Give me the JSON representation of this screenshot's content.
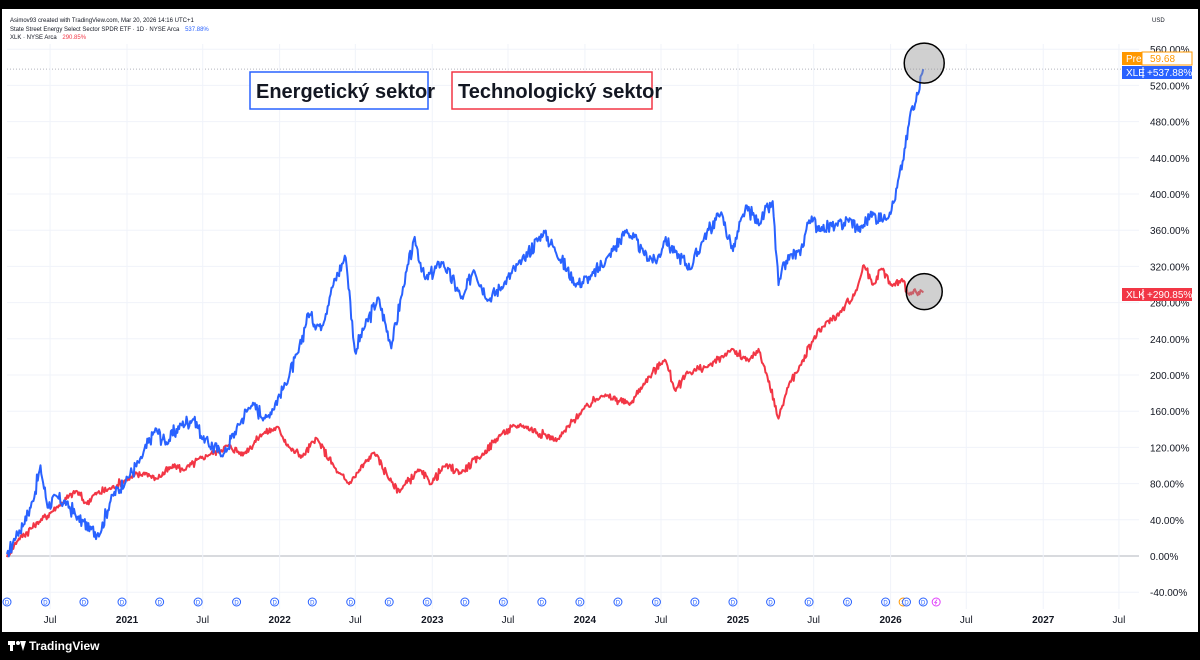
{
  "header": {
    "credit": "Asimov93 created with TradingView.com, Mar 20, 2026 14:16 UTC+1",
    "line1_name": "State Street Energy Select Sector SPDR ETF · 1D · NYSE Arca",
    "line1_value": "537.88%",
    "line2_name": "XLK · NYSE Arca",
    "line2_value": "290.85%",
    "currency": "USD"
  },
  "footer": {
    "brand": "TradingView"
  },
  "badges": {
    "pre_label": "Pre",
    "pre_value": "59.68",
    "xle_label": "XLE",
    "xle_value": "+537.88%",
    "xlk_label": "XLK",
    "xlk_value": "+290.85%"
  },
  "colors": {
    "energy": "#2962ff",
    "tech": "#f23645",
    "pre": "#ff9800"
  },
  "chart_data": {
    "type": "line",
    "ylabel_unit": "%",
    "ylim": [
      -50,
      560
    ],
    "y_ticks": [
      "-40.00%",
      "0.00%",
      "40.00%",
      "80.00%",
      "120.00%",
      "160.00%",
      "200.00%",
      "240.00%",
      "280.00%",
      "320.00%",
      "360.00%",
      "400.00%",
      "440.00%",
      "480.00%",
      "520.00%",
      "560.00%"
    ],
    "y_tick_values": [
      -40,
      0,
      40,
      80,
      120,
      160,
      200,
      240,
      280,
      320,
      360,
      400,
      440,
      480,
      520,
      560
    ],
    "x_ticks": [
      {
        "label": "Jul",
        "date": "2020-07-01",
        "major": false
      },
      {
        "label": "2021",
        "date": "2021-01-01",
        "major": true
      },
      {
        "label": "Jul",
        "date": "2021-07-01",
        "major": false
      },
      {
        "label": "2022",
        "date": "2022-01-01",
        "major": true
      },
      {
        "label": "Jul",
        "date": "2022-07-01",
        "major": false
      },
      {
        "label": "2023",
        "date": "2023-01-01",
        "major": true
      },
      {
        "label": "Jul",
        "date": "2023-07-01",
        "major": false
      },
      {
        "label": "2024",
        "date": "2024-01-01",
        "major": true
      },
      {
        "label": "Jul",
        "date": "2024-07-01",
        "major": false
      },
      {
        "label": "2025",
        "date": "2025-01-01",
        "major": true
      },
      {
        "label": "Jul",
        "date": "2025-07-01",
        "major": false
      },
      {
        "label": "2026",
        "date": "2026-01-01",
        "major": true
      },
      {
        "label": "Jul",
        "date": "2026-07-01",
        "major": false
      },
      {
        "label": "2027",
        "date": "2027-01-01",
        "major": true
      },
      {
        "label": "Jul",
        "date": "2027-07-01",
        "major": false
      }
    ],
    "xlim": [
      "2020-03-20",
      "2027-08-18"
    ],
    "series": [
      {
        "name": "Energetický sektor",
        "ticker": "XLE",
        "points": [
          [
            "2020-03-20",
            0
          ],
          [
            "2020-04-10",
            22
          ],
          [
            "2020-05-01",
            38
          ],
          [
            "2020-05-20",
            60
          ],
          [
            "2020-06-08",
            98
          ],
          [
            "2020-06-25",
            55
          ],
          [
            "2020-07-15",
            65
          ],
          [
            "2020-08-10",
            58
          ],
          [
            "2020-09-05",
            42
          ],
          [
            "2020-10-05",
            30
          ],
          [
            "2020-10-28",
            25
          ],
          [
            "2020-11-25",
            65
          ],
          [
            "2020-12-31",
            85
          ],
          [
            "2021-02-01",
            105
          ],
          [
            "2021-03-10",
            140
          ],
          [
            "2021-04-05",
            125
          ],
          [
            "2021-05-10",
            145
          ],
          [
            "2021-06-10",
            152
          ],
          [
            "2021-07-01",
            130
          ],
          [
            "2021-08-20",
            112
          ],
          [
            "2021-09-25",
            145
          ],
          [
            "2021-10-25",
            168
          ],
          [
            "2021-12-01",
            152
          ],
          [
            "2022-01-15",
            190
          ],
          [
            "2022-02-15",
            225
          ],
          [
            "2022-03-10",
            268
          ],
          [
            "2022-04-10",
            252
          ],
          [
            "2022-05-05",
            295
          ],
          [
            "2022-06-08",
            332
          ],
          [
            "2022-06-30",
            225
          ],
          [
            "2022-07-20",
            250
          ],
          [
            "2022-08-25",
            285
          ],
          [
            "2022-09-25",
            232
          ],
          [
            "2022-10-25",
            300
          ],
          [
            "2022-11-20",
            350
          ],
          [
            "2022-12-15",
            305
          ],
          [
            "2023-01-25",
            325
          ],
          [
            "2023-03-15",
            283
          ],
          [
            "2023-04-10",
            318
          ],
          [
            "2023-05-15",
            283
          ],
          [
            "2023-06-20",
            300
          ],
          [
            "2023-08-01",
            325
          ],
          [
            "2023-09-25",
            358
          ],
          [
            "2023-10-20",
            340
          ],
          [
            "2023-12-10",
            300
          ],
          [
            "2024-01-15",
            308
          ],
          [
            "2024-02-25",
            330
          ],
          [
            "2024-04-10",
            360
          ],
          [
            "2024-05-20",
            335
          ],
          [
            "2024-06-20",
            325
          ],
          [
            "2024-07-10",
            350
          ],
          [
            "2024-08-05",
            335
          ],
          [
            "2024-09-10",
            318
          ],
          [
            "2024-10-10",
            350
          ],
          [
            "2024-11-20",
            380
          ],
          [
            "2024-12-20",
            338
          ],
          [
            "2025-01-20",
            385
          ],
          [
            "2025-02-20",
            368
          ],
          [
            "2025-03-25",
            390
          ],
          [
            "2025-04-08",
            300
          ],
          [
            "2025-05-01",
            330
          ],
          [
            "2025-05-30",
            335
          ],
          [
            "2025-06-20",
            372
          ],
          [
            "2025-07-20",
            362
          ],
          [
            "2025-08-25",
            365
          ],
          [
            "2025-09-25",
            372
          ],
          [
            "2025-10-20",
            360
          ],
          [
            "2025-11-15",
            378
          ],
          [
            "2025-12-15",
            372
          ],
          [
            "2026-01-10",
            392
          ],
          [
            "2026-02-01",
            440
          ],
          [
            "2026-02-20",
            495
          ],
          [
            "2026-03-05",
            510
          ],
          [
            "2026-03-20",
            538
          ]
        ]
      },
      {
        "name": "Technologický sektor",
        "ticker": "XLK",
        "points": [
          [
            "2020-03-20",
            0
          ],
          [
            "2020-04-15",
            18
          ],
          [
            "2020-06-05",
            38
          ],
          [
            "2020-07-20",
            55
          ],
          [
            "2020-09-02",
            72
          ],
          [
            "2020-09-25",
            58
          ],
          [
            "2020-10-15",
            68
          ],
          [
            "2020-11-25",
            75
          ],
          [
            "2020-12-31",
            85
          ],
          [
            "2021-02-15",
            92
          ],
          [
            "2021-03-10",
            85
          ],
          [
            "2021-04-25",
            100
          ],
          [
            "2021-05-15",
            95
          ],
          [
            "2021-07-15",
            112
          ],
          [
            "2021-09-01",
            122
          ],
          [
            "2021-10-05",
            112
          ],
          [
            "2021-11-20",
            135
          ],
          [
            "2021-12-28",
            142
          ],
          [
            "2022-01-27",
            118
          ],
          [
            "2022-02-25",
            110
          ],
          [
            "2022-03-30",
            130
          ],
          [
            "2022-05-20",
            92
          ],
          [
            "2022-06-16",
            80
          ],
          [
            "2022-08-15",
            115
          ],
          [
            "2022-09-30",
            78
          ],
          [
            "2022-10-15",
            72
          ],
          [
            "2022-11-30",
            95
          ],
          [
            "2022-12-28",
            80
          ],
          [
            "2023-02-01",
            100
          ],
          [
            "2023-03-10",
            92
          ],
          [
            "2023-05-01",
            112
          ],
          [
            "2023-06-15",
            135
          ],
          [
            "2023-07-31",
            145
          ],
          [
            "2023-10-27",
            128
          ],
          [
            "2023-12-28",
            162
          ],
          [
            "2024-02-10",
            178
          ],
          [
            "2024-04-19",
            168
          ],
          [
            "2024-05-20",
            190
          ],
          [
            "2024-07-10",
            218
          ],
          [
            "2024-08-05",
            182
          ],
          [
            "2024-08-30",
            202
          ],
          [
            "2024-10-25",
            210
          ],
          [
            "2024-12-15",
            228
          ],
          [
            "2025-01-27",
            215
          ],
          [
            "2025-02-19",
            228
          ],
          [
            "2025-03-10",
            202
          ],
          [
            "2025-04-08",
            152
          ],
          [
            "2025-05-01",
            188
          ],
          [
            "2025-05-30",
            210
          ],
          [
            "2025-07-01",
            240
          ],
          [
            "2025-08-01",
            258
          ],
          [
            "2025-09-01",
            268
          ],
          [
            "2025-10-10",
            292
          ],
          [
            "2025-10-29",
            322
          ],
          [
            "2025-11-20",
            300
          ],
          [
            "2025-12-10",
            318
          ],
          [
            "2026-01-05",
            298
          ],
          [
            "2026-01-28",
            305
          ],
          [
            "2026-02-15",
            290
          ],
          [
            "2026-03-20",
            291
          ]
        ]
      }
    ],
    "events": {
      "dividend_label": "D",
      "dates": [
        "2020-03-20",
        "2020-06-20",
        "2020-09-20",
        "2020-12-20",
        "2021-03-20",
        "2021-06-20",
        "2021-09-20",
        "2021-12-20",
        "2022-03-20",
        "2022-06-20",
        "2022-09-20",
        "2022-12-20",
        "2023-03-20",
        "2023-06-20",
        "2023-09-20",
        "2023-12-20",
        "2024-03-20",
        "2024-06-20",
        "2024-09-20",
        "2024-12-20",
        "2025-03-20",
        "2025-06-20",
        "2025-09-20",
        "2025-12-20",
        "2026-03-20"
      ],
      "earnings_label": "S",
      "earnings_date": "2026-01-31",
      "split_label": "D",
      "split_date": "2026-02-08"
    }
  }
}
